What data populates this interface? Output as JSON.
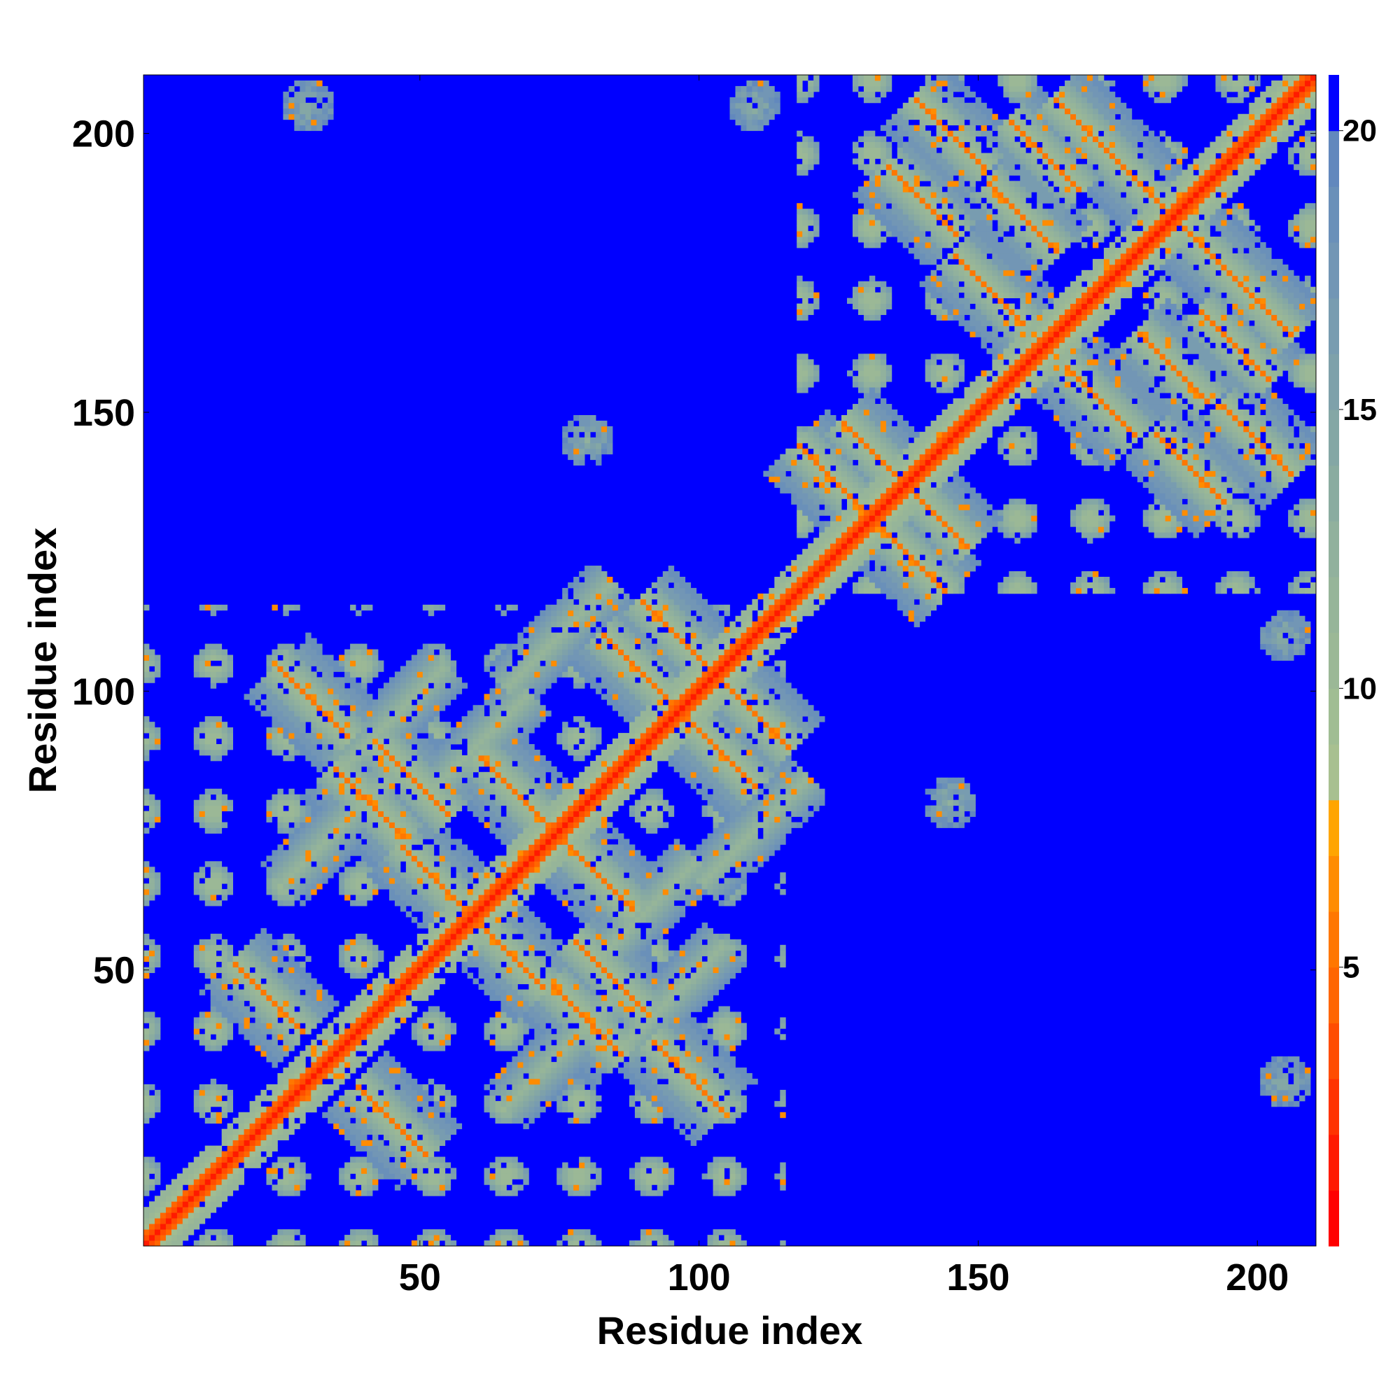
{
  "chart_data": {
    "type": "heatmap",
    "title": "",
    "xlabel": "Residue index",
    "ylabel": "Residue index",
    "xlim": [
      1,
      210
    ],
    "ylim": [
      1,
      210
    ],
    "xticks": [
      50,
      100,
      150,
      200
    ],
    "yticks": [
      50,
      100,
      150,
      200
    ],
    "colorbar": {
      "range": [
        0,
        21
      ],
      "ticks": [
        5,
        10,
        15,
        20
      ],
      "levels": [
        {
          "from": 0,
          "to": 1,
          "color": "#ff0000"
        },
        {
          "from": 1,
          "to": 2,
          "color": "#ff1a00"
        },
        {
          "from": 2,
          "to": 3,
          "color": "#ff3300"
        },
        {
          "from": 3,
          "to": 4,
          "color": "#ff4d00"
        },
        {
          "from": 4,
          "to": 5,
          "color": "#ff6600"
        },
        {
          "from": 5,
          "to": 6,
          "color": "#ff7700"
        },
        {
          "from": 6,
          "to": 7,
          "color": "#ff8c00"
        },
        {
          "from": 7,
          "to": 8,
          "color": "#ffa500"
        },
        {
          "from": 8,
          "to": 9,
          "color": "#a8c090"
        },
        {
          "from": 9,
          "to": 10,
          "color": "#a0bd93"
        },
        {
          "from": 10,
          "to": 11,
          "color": "#9bb896"
        },
        {
          "from": 11,
          "to": 12,
          "color": "#96b599"
        },
        {
          "from": 12,
          "to": 13,
          "color": "#91b19d"
        },
        {
          "from": 13,
          "to": 14,
          "color": "#8aaca0"
        },
        {
          "from": 14,
          "to": 15,
          "color": "#84a7a5"
        },
        {
          "from": 15,
          "to": 16,
          "color": "#7ea1aa"
        },
        {
          "from": 16,
          "to": 17,
          "color": "#789cb0"
        },
        {
          "from": 17,
          "to": 18,
          "color": "#7296b5"
        },
        {
          "from": 18,
          "to": 19,
          "color": "#6a90b9"
        },
        {
          "from": 19,
          "to": 20,
          "color": "#6288bd"
        },
        {
          "from": 20,
          "to": 21,
          "color": "#0000ff"
        }
      ]
    },
    "contact_map_model": {
      "description_of_pattern": "symmetric residue distance map (angstrom-like levels), two domains",
      "diagonal_value": 1.5,
      "background_value": 21,
      "domains": [
        {
          "start": 1,
          "end": 115
        },
        {
          "start": 118,
          "end": 210
        }
      ],
      "antiparallel_strand_pairs": [
        [
          23,
          45
        ],
        [
          31,
          98
        ],
        [
          49,
          84
        ],
        [
          53,
          66
        ],
        [
          67,
          82
        ],
        [
          66,
          52
        ],
        [
          96,
          110
        ],
        [
          89,
          104
        ],
        [
          33,
          24
        ],
        [
          86,
          48
        ],
        [
          41,
          80
        ],
        [
          124,
          138
        ],
        [
          132,
          142
        ],
        [
          145,
          200
        ],
        [
          152,
          172
        ],
        [
          158,
          185
        ],
        [
          170,
          200
        ],
        [
          180,
          190
        ],
        [
          140,
          188
        ],
        [
          185,
          145
        ],
        [
          162,
          196
        ]
      ],
      "parallel_helix_contacts": [
        [
          35,
          75
        ],
        [
          60,
          90
        ],
        [
          75,
          110
        ],
        [
          45,
          95
        ],
        [
          170,
          140
        ],
        [
          190,
          150
        ]
      ],
      "far_patches": [
        [
          205,
          30
        ],
        [
          30,
          205
        ],
        [
          205,
          110
        ],
        [
          110,
          205
        ],
        [
          145,
          80
        ],
        [
          80,
          145
        ]
      ]
    }
  }
}
